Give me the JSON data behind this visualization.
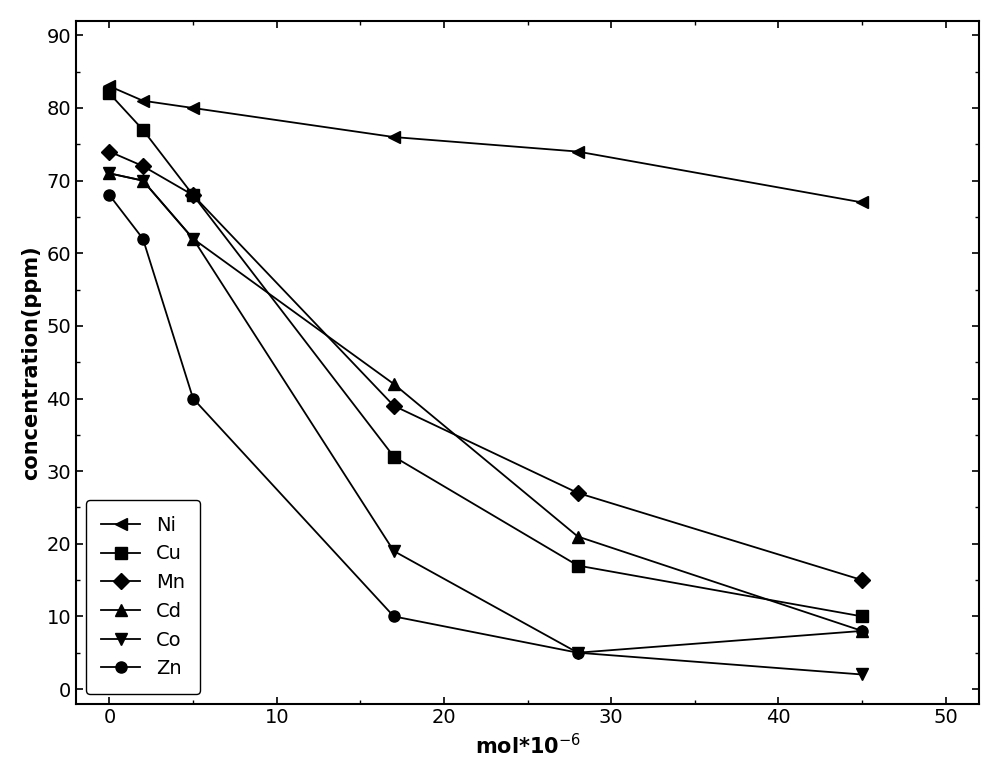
{
  "title": "",
  "xlabel": "mol*10$^{-6}$",
  "ylabel": "concentration(ppm)",
  "xlim": [
    -2,
    52
  ],
  "ylim": [
    -2,
    92
  ],
  "xticks": [
    0,
    10,
    20,
    30,
    40,
    50
  ],
  "yticks": [
    0,
    10,
    20,
    30,
    40,
    50,
    60,
    70,
    80,
    90
  ],
  "series": {
    "Ni": {
      "x": [
        0,
        2,
        5,
        17,
        28,
        45
      ],
      "y": [
        83,
        81,
        80,
        76,
        74,
        67
      ],
      "marker": "<",
      "linestyle": "-"
    },
    "Cu": {
      "x": [
        0,
        2,
        5,
        17,
        28,
        45
      ],
      "y": [
        82,
        77,
        68,
        32,
        17,
        10
      ],
      "marker": "s",
      "linestyle": "-"
    },
    "Mn": {
      "x": [
        0,
        2,
        5,
        17,
        28,
        45
      ],
      "y": [
        74,
        72,
        68,
        39,
        27,
        15
      ],
      "marker": "D",
      "linestyle": "-"
    },
    "Cd": {
      "x": [
        0,
        2,
        5,
        17,
        28,
        45
      ],
      "y": [
        71,
        70,
        62,
        42,
        21,
        8
      ],
      "marker": "^",
      "linestyle": "-"
    },
    "Co": {
      "x": [
        0,
        2,
        5,
        17,
        28,
        45
      ],
      "y": [
        71,
        70,
        62,
        19,
        5,
        2
      ],
      "marker": "v",
      "linestyle": "-"
    },
    "Zn": {
      "x": [
        0,
        2,
        5,
        17,
        28,
        45
      ],
      "y": [
        68,
        62,
        40,
        10,
        5,
        8
      ],
      "marker": "o",
      "linestyle": "-"
    }
  },
  "line_color": "#000000",
  "marker_size": 8,
  "linewidth": 1.3,
  "background_color": "#ffffff",
  "legend_loc": "lower left",
  "font_size": 15,
  "tick_fontsize": 14
}
